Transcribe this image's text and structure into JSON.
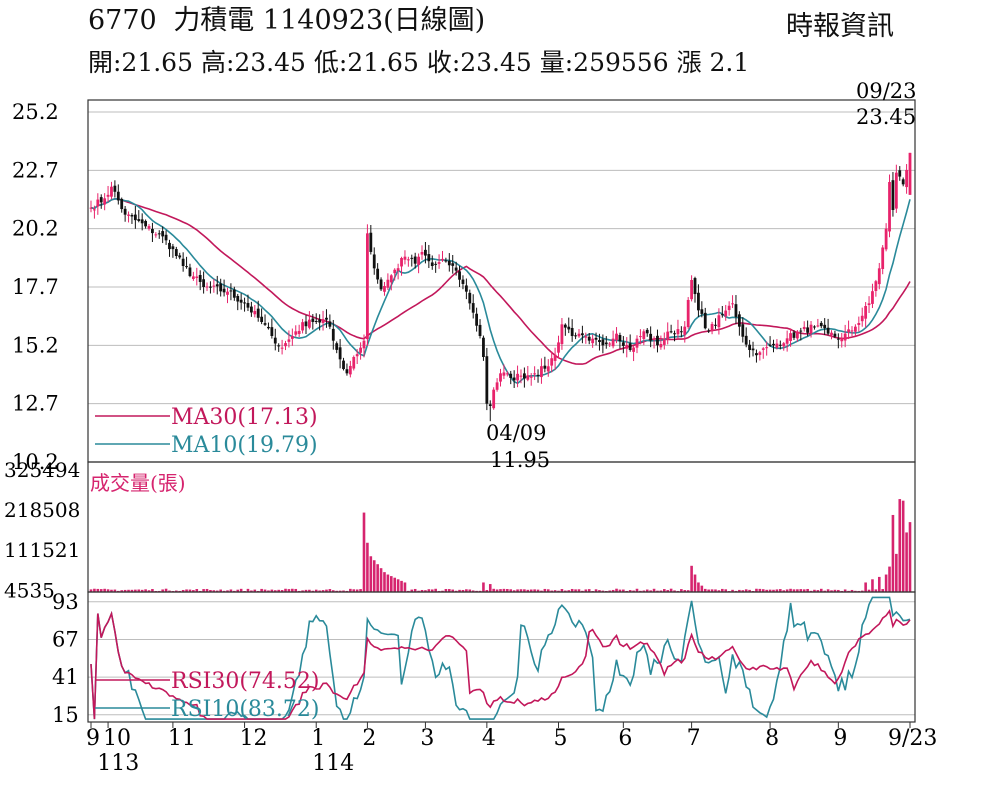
{
  "header": {
    "code": "6770",
    "name": "力積電",
    "date_label": "1140923(日線圖)",
    "source": "時報資訊",
    "stats": "開:21.65 高:23.45 低:21.65 收:23.45 量:259556 漲 2.1"
  },
  "chart_data": [
    {
      "type": "candlestick",
      "panel": "price",
      "ylim": [
        10.2,
        25.2
      ],
      "yticks": [
        25.2,
        22.7,
        20.2,
        17.7,
        15.2,
        12.7,
        10.2
      ],
      "legend": [
        {
          "label": "MA30(17.13)",
          "color": "#c2185b"
        },
        {
          "label": "MA10(19.79)",
          "color": "#2a8a9a"
        }
      ],
      "annotations": [
        {
          "date": "09/23",
          "value": "23.45",
          "index": 240
        },
        {
          "date": "04/09",
          "value": "11.95",
          "index": 117
        }
      ],
      "close_anchors": [
        [
          0,
          21.1
        ],
        [
          4,
          21.5
        ],
        [
          6,
          22.0
        ],
        [
          10,
          20.8
        ],
        [
          16,
          20.3
        ],
        [
          22,
          19.7
        ],
        [
          27,
          18.6
        ],
        [
          33,
          17.7
        ],
        [
          40,
          17.5
        ],
        [
          45,
          17.0
        ],
        [
          50,
          16.2
        ],
        [
          53,
          15.6
        ],
        [
          56,
          15.1
        ],
        [
          60,
          15.8
        ],
        [
          64,
          16.3
        ],
        [
          66,
          16.2
        ],
        [
          69,
          16.3
        ],
        [
          71,
          15.4
        ],
        [
          73,
          14.6
        ],
        [
          75,
          14.0
        ],
        [
          77,
          14.7
        ],
        [
          79,
          15.1
        ],
        [
          80,
          15.4
        ],
        [
          81,
          20.0
        ],
        [
          83,
          18.5
        ],
        [
          85,
          17.6
        ],
        [
          88,
          18.2
        ],
        [
          92,
          19.0
        ],
        [
          95,
          18.7
        ],
        [
          97,
          19.2
        ],
        [
          100,
          18.6
        ],
        [
          104,
          18.8
        ],
        [
          107,
          18.4
        ],
        [
          110,
          17.5
        ],
        [
          112,
          16.6
        ],
        [
          114,
          15.6
        ],
        [
          115,
          14.7
        ],
        [
          116,
          12.7
        ],
        [
          117,
          12.6
        ],
        [
          118,
          13.3
        ],
        [
          120,
          14.0
        ],
        [
          123,
          13.8
        ],
        [
          126,
          13.9
        ],
        [
          130,
          14.0
        ],
        [
          133,
          14.2
        ],
        [
          136,
          14.8
        ],
        [
          138,
          16.1
        ],
        [
          142,
          15.6
        ],
        [
          146,
          15.4
        ],
        [
          150,
          15.2
        ],
        [
          154,
          15.7
        ],
        [
          158,
          15.0
        ],
        [
          162,
          15.8
        ],
        [
          166,
          15.2
        ],
        [
          170,
          15.8
        ],
        [
          174,
          16.0
        ],
        [
          176,
          18.0
        ],
        [
          178,
          16.7
        ],
        [
          181,
          15.8
        ],
        [
          185,
          16.5
        ],
        [
          188,
          17.0
        ],
        [
          190,
          16.0
        ],
        [
          193,
          15.0
        ],
        [
          196,
          14.9
        ],
        [
          200,
          15.2
        ],
        [
          204,
          15.5
        ],
        [
          208,
          15.8
        ],
        [
          212,
          16.0
        ],
        [
          216,
          15.7
        ],
        [
          220,
          15.5
        ],
        [
          224,
          16.0
        ],
        [
          228,
          17.0
        ],
        [
          231,
          18.5
        ],
        [
          233,
          20.2
        ],
        [
          234,
          22.2
        ],
        [
          235,
          21.0
        ],
        [
          236,
          22.6
        ],
        [
          238,
          22.1
        ],
        [
          240,
          23.45
        ]
      ],
      "gaps": [
        117,
        118
      ],
      "n_bars": 241
    },
    {
      "type": "bar",
      "panel": "volume",
      "title": "成交量(張)",
      "ylim": [
        0,
        325494
      ],
      "yticks": [
        325494,
        218508,
        111521,
        4535
      ],
      "spikes": [
        [
          80,
          1.0
        ],
        [
          81,
          0.62
        ],
        [
          82,
          0.45
        ],
        [
          83,
          0.4
        ],
        [
          84,
          0.35
        ],
        [
          85,
          0.3
        ],
        [
          86,
          0.25
        ],
        [
          87,
          0.22
        ],
        [
          88,
          0.2
        ],
        [
          89,
          0.18
        ],
        [
          90,
          0.16
        ],
        [
          91,
          0.14
        ],
        [
          92,
          0.12
        ],
        [
          115,
          0.12
        ],
        [
          117,
          0.1
        ],
        [
          176,
          0.33
        ],
        [
          177,
          0.22
        ],
        [
          178,
          0.12
        ],
        [
          179,
          0.08
        ],
        [
          227,
          0.12
        ],
        [
          229,
          0.16
        ],
        [
          231,
          0.19
        ],
        [
          233,
          0.22
        ],
        [
          234,
          0.32
        ],
        [
          235,
          0.97
        ],
        [
          236,
          0.48
        ],
        [
          237,
          1.17
        ],
        [
          238,
          1.15
        ],
        [
          239,
          0.75
        ],
        [
          240,
          0.88
        ]
      ]
    },
    {
      "type": "line",
      "panel": "rsi",
      "ylim": [
        10,
        97
      ],
      "yticks": [
        93,
        67,
        41,
        15
      ],
      "legend": [
        {
          "label": "RSI30(74.52)",
          "color": "#c2185b"
        },
        {
          "label": "RSI10(83.72)",
          "color": "#2a8a9a"
        }
      ]
    }
  ],
  "x_axis": {
    "month_labels": [
      {
        "label": "9",
        "index": 0
      },
      {
        "label": "10",
        "index": 5
      },
      {
        "label": "11",
        "index": 24
      },
      {
        "label": "12",
        "index": 45
      },
      {
        "label": "1",
        "index": 66
      },
      {
        "label": "2",
        "index": 81
      },
      {
        "label": "3",
        "index": 98
      },
      {
        "label": "4",
        "index": 116
      },
      {
        "label": "5",
        "index": 137
      },
      {
        "label": "6",
        "index": 156
      },
      {
        "label": "7",
        "index": 176
      },
      {
        "label": "8",
        "index": 199
      },
      {
        "label": "9",
        "index": 219
      },
      {
        "label": "9/23",
        "index": 240
      }
    ],
    "year_labels": [
      {
        "label": "113",
        "index": 3
      },
      {
        "label": "114",
        "index": 66
      }
    ]
  },
  "colors": {
    "up": "#e8236b",
    "down": "#111111",
    "ma30": "#c2185b",
    "ma10": "#2a8a9a",
    "volume": "#d6246e",
    "grid": "#bdbdbd",
    "axis": "#333333"
  }
}
